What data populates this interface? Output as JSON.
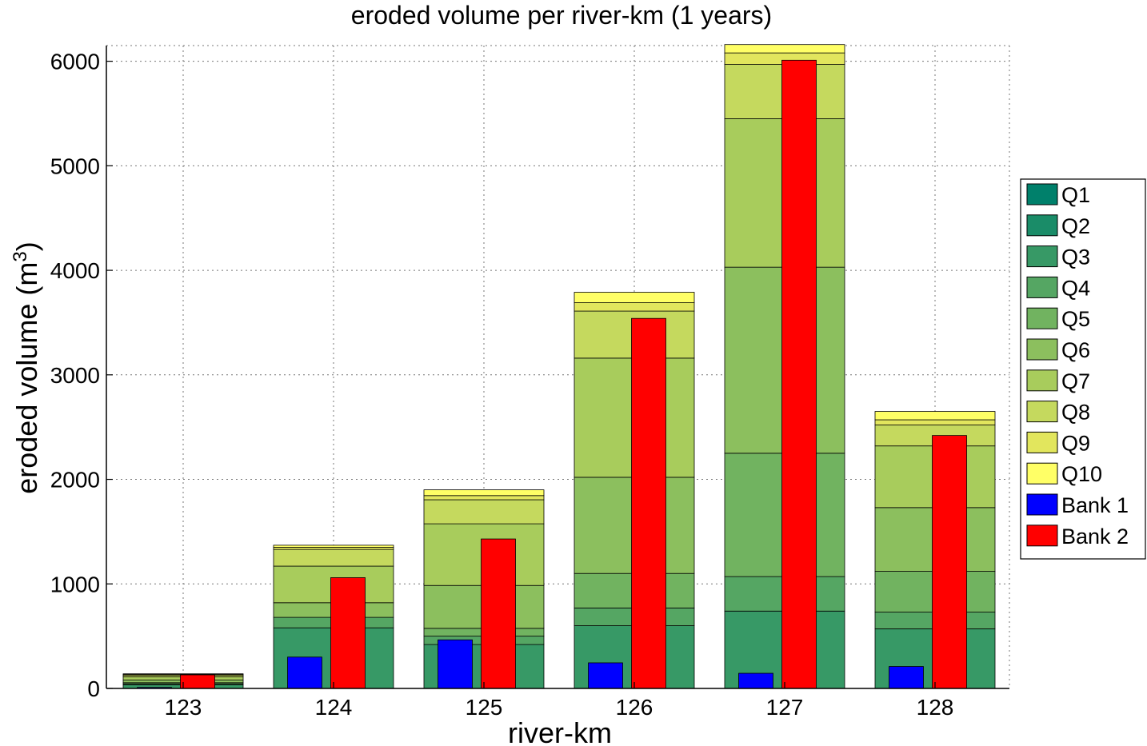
{
  "chart_data": {
    "type": "bar",
    "title": "eroded volume per river-km (1 years)",
    "xlabel": "river-km",
    "ylabel": "eroded volume (m",
    "ylabel_sup": "3",
    "ylabel_close": ")",
    "ylim": [
      0,
      6150
    ],
    "yticks": [
      0,
      1000,
      2000,
      3000,
      4000,
      5000,
      6000
    ],
    "ytick_labels": [
      "0",
      "1000",
      "2000",
      "3000",
      "4000",
      "5000",
      "6000"
    ],
    "categories": [
      "123",
      "124",
      "125",
      "126",
      "127",
      "128"
    ],
    "grid": true,
    "legend_position": "right",
    "stacked_series": [
      {
        "name": "Q1",
        "color": "#00806b",
        "values": [
          0,
          0,
          0,
          0,
          0,
          0
        ]
      },
      {
        "name": "Q2",
        "color": "#1a8c68",
        "values": [
          0,
          0,
          0,
          0,
          0,
          0
        ]
      },
      {
        "name": "Q3",
        "color": "#379966",
        "values": [
          35,
          580,
          420,
          600,
          740,
          570
        ]
      },
      {
        "name": "Q4",
        "color": "#55a663",
        "values": [
          10,
          100,
          80,
          170,
          330,
          160
        ]
      },
      {
        "name": "Q5",
        "color": "#71b360",
        "values": [
          10,
          0,
          75,
          330,
          1180,
          390
        ]
      },
      {
        "name": "Q6",
        "color": "#8cbf5e",
        "values": [
          25,
          140,
          410,
          920,
          1780,
          610
        ]
      },
      {
        "name": "Q7",
        "color": "#a8cc5c",
        "values": [
          30,
          350,
          590,
          1140,
          1420,
          590
        ]
      },
      {
        "name": "Q8",
        "color": "#c5d95e",
        "values": [
          15,
          160,
          230,
          450,
          520,
          200
        ]
      },
      {
        "name": "Q9",
        "color": "#e2e65d",
        "values": [
          10,
          20,
          40,
          80,
          110,
          50
        ]
      },
      {
        "name": "Q10",
        "color": "#ffff66",
        "values": [
          5,
          20,
          55,
          100,
          80,
          80
        ]
      }
    ],
    "series": [
      {
        "name": "Bank 1",
        "color": "#0000ff",
        "values": [
          10,
          300,
          465,
          245,
          145,
          210
        ]
      },
      {
        "name": "Bank 2",
        "color": "#ff0000",
        "values": [
          130,
          1060,
          1430,
          3540,
          6010,
          2420
        ]
      }
    ]
  }
}
